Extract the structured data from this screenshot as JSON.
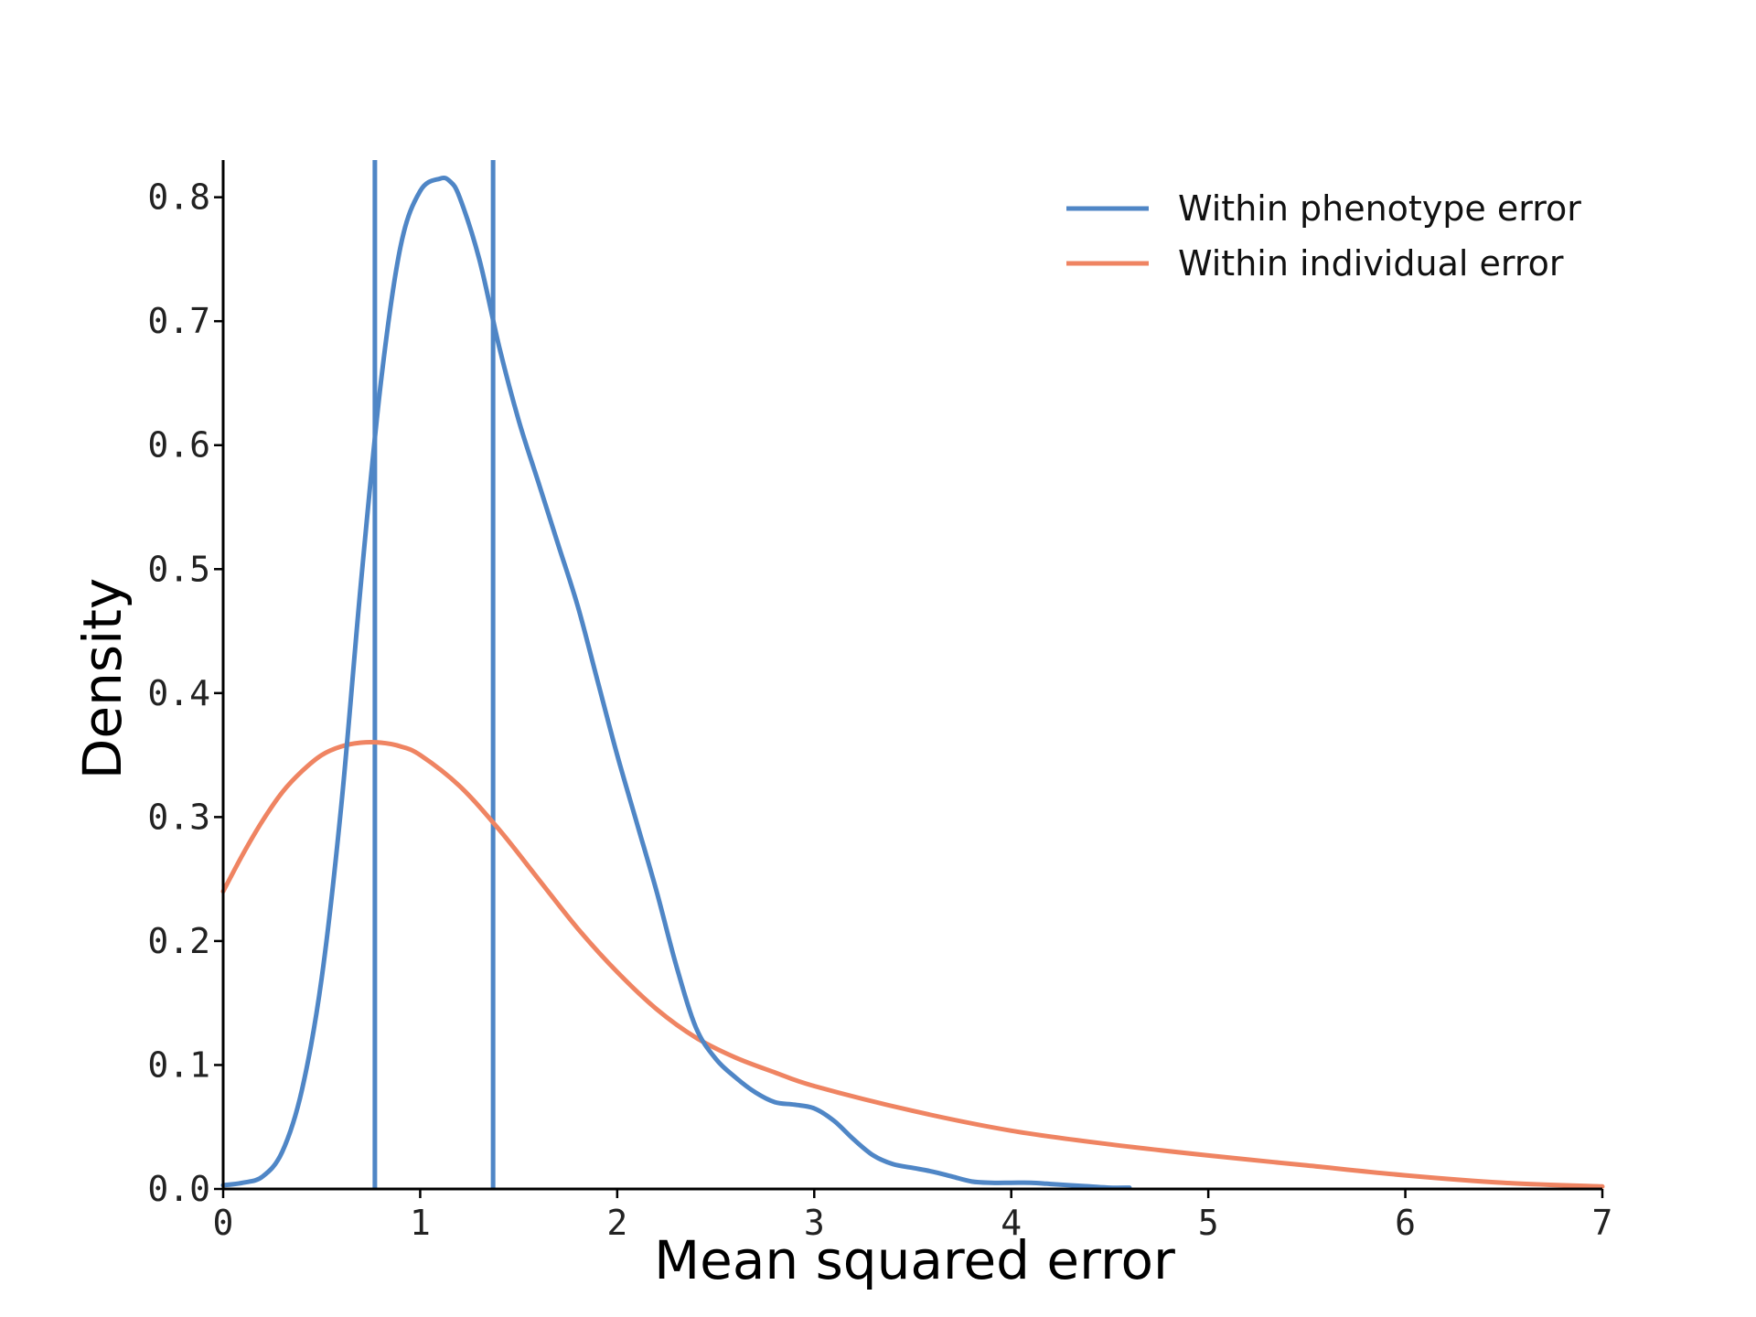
{
  "chart_data": {
    "type": "line",
    "title": "",
    "xlabel": "Mean squared error",
    "ylabel": "Density",
    "xlim": [
      0,
      7
    ],
    "ylim": [
      0,
      0.83
    ],
    "x_ticks": [
      "0",
      "1",
      "2",
      "3",
      "4",
      "5",
      "6",
      "7"
    ],
    "y_ticks": [
      "0.0",
      "0.1",
      "0.2",
      "0.3",
      "0.4",
      "0.5",
      "0.6",
      "0.7",
      "0.8"
    ],
    "grid": false,
    "legend_position": "top-right",
    "series": [
      {
        "name": "Within phenotype error",
        "color": "#4f86c6",
        "x": [
          0.0,
          0.1,
          0.2,
          0.3,
          0.4,
          0.5,
          0.6,
          0.7,
          0.8,
          0.9,
          1.0,
          1.1,
          1.15,
          1.2,
          1.3,
          1.4,
          1.5,
          1.6,
          1.7,
          1.8,
          1.9,
          2.0,
          2.1,
          2.2,
          2.3,
          2.4,
          2.5,
          2.6,
          2.7,
          2.8,
          2.9,
          3.0,
          3.1,
          3.2,
          3.3,
          3.4,
          3.5,
          3.6,
          3.7,
          3.8,
          3.9,
          4.0,
          4.1,
          4.2,
          4.3,
          4.4,
          4.5,
          4.6
        ],
        "y": [
          0.003,
          0.005,
          0.01,
          0.03,
          0.08,
          0.17,
          0.31,
          0.49,
          0.65,
          0.76,
          0.805,
          0.815,
          0.813,
          0.8,
          0.75,
          0.68,
          0.62,
          0.57,
          0.52,
          0.47,
          0.41,
          0.35,
          0.295,
          0.24,
          0.18,
          0.13,
          0.105,
          0.09,
          0.078,
          0.07,
          0.068,
          0.065,
          0.055,
          0.04,
          0.027,
          0.02,
          0.017,
          0.014,
          0.01,
          0.006,
          0.005,
          0.005,
          0.005,
          0.004,
          0.003,
          0.002,
          0.001,
          0.001
        ]
      },
      {
        "name": "Within individual error",
        "color": "#ef8462",
        "x": [
          0.0,
          0.1,
          0.2,
          0.3,
          0.4,
          0.5,
          0.6,
          0.7,
          0.8,
          0.9,
          1.0,
          1.2,
          1.4,
          1.6,
          1.8,
          2.0,
          2.2,
          2.4,
          2.6,
          2.8,
          3.0,
          3.5,
          4.0,
          4.5,
          5.0,
          5.5,
          6.0,
          6.5,
          7.0
        ],
        "y": [
          0.24,
          0.27,
          0.297,
          0.32,
          0.337,
          0.35,
          0.357,
          0.36,
          0.36,
          0.357,
          0.35,
          0.325,
          0.29,
          0.25,
          0.21,
          0.175,
          0.145,
          0.122,
          0.106,
          0.094,
          0.083,
          0.063,
          0.047,
          0.036,
          0.027,
          0.019,
          0.011,
          0.005,
          0.002
        ]
      }
    ],
    "vertical_lines": [
      {
        "x": 0.77,
        "color": "#4f86c6"
      },
      {
        "x": 1.37,
        "color": "#4f86c6"
      }
    ]
  }
}
